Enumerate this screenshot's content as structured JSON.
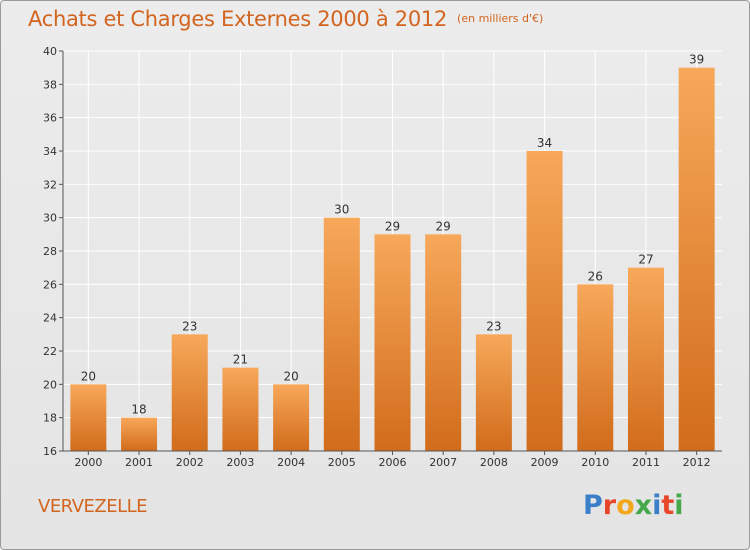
{
  "header": {
    "title": "Achats et Charges Externes 2000 à 2012",
    "unit": "(en milliers d'€)"
  },
  "footer": {
    "commune": "VERVEZELLE",
    "brand": "Proxiti"
  },
  "colors": {
    "title": "#d2651f",
    "bar_top": "#f7a85a",
    "bar_bottom": "#d16c1b",
    "brand_letters": [
      "#3a7fc8",
      "#e8462a",
      "#f2a81d",
      "#45a84a",
      "#3a7fc8",
      "#e8462a",
      "#45a84a"
    ]
  },
  "chart_data": {
    "type": "bar",
    "title": "Achats et Charges Externes 2000 à 2012",
    "subtitle": "(en milliers d'€)",
    "categories": [
      "2000",
      "2001",
      "2002",
      "2003",
      "2004",
      "2005",
      "2006",
      "2007",
      "2008",
      "2009",
      "2010",
      "2011",
      "2012"
    ],
    "values": [
      20,
      18,
      23,
      21,
      20,
      30,
      29,
      29,
      23,
      34,
      26,
      27,
      39
    ],
    "ylim": [
      16,
      40
    ],
    "yticks": [
      16,
      18,
      20,
      22,
      24,
      26,
      28,
      30,
      32,
      34,
      36,
      38,
      40
    ],
    "grid": true,
    "legend": "none"
  }
}
